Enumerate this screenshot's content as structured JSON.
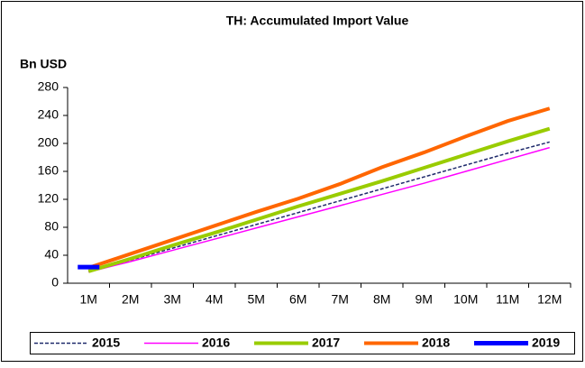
{
  "chart_data": {
    "type": "line",
    "title": "TH: Accumulated Import Value",
    "y_label": "Bn USD",
    "categories": [
      "1M",
      "2M",
      "3M",
      "4M",
      "5M",
      "6M",
      "7M",
      "8M",
      "9M",
      "10M",
      "11M",
      "12M"
    ],
    "series": [
      {
        "name": "2015",
        "color": "#1f2a6b",
        "dashed": true,
        "width": 1.5,
        "values": [
          17,
          33,
          50,
          67,
          84,
          101,
          118,
          135,
          152,
          169,
          186,
          202
        ]
      },
      {
        "name": "2016",
        "color": "#ff00ff",
        "width": 1.5,
        "values": [
          16,
          31,
          47,
          63,
          79,
          95,
          111,
          127,
          143,
          160,
          177,
          194
        ]
      },
      {
        "name": "2017",
        "color": "#99cc00",
        "width": 4,
        "values": [
          17,
          35,
          54,
          72,
          91,
          110,
          128,
          146,
          165,
          184,
          203,
          221
        ]
      },
      {
        "name": "2018",
        "color": "#ff6600",
        "width": 4,
        "values": [
          22,
          42,
          62,
          82,
          102,
          121,
          142,
          166,
          187,
          210,
          232,
          250
        ]
      },
      {
        "name": "2019",
        "color": "#0000ff",
        "width": 5,
        "values": [
          23,
          null,
          null,
          null,
          null,
          null,
          null,
          null,
          null,
          null,
          null,
          null
        ]
      }
    ],
    "ylim": [
      0,
      280
    ],
    "yticks": [
      0,
      40,
      80,
      120,
      160,
      200,
      240,
      280
    ],
    "grid": false,
    "legend": "bottom"
  }
}
